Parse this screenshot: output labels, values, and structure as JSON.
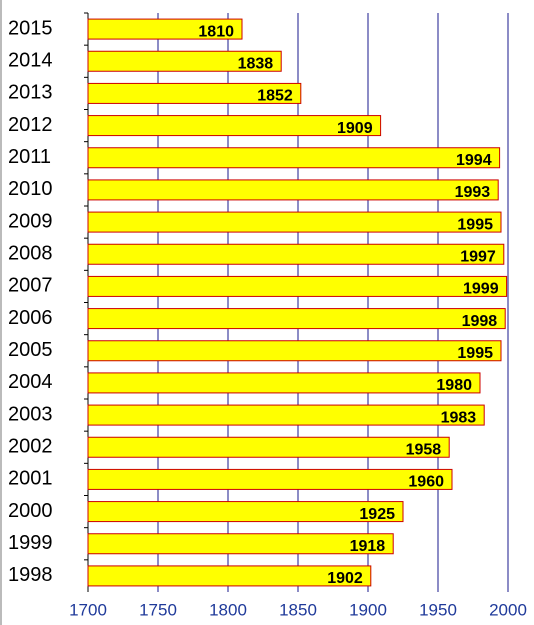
{
  "chart_data": {
    "type": "bar",
    "orientation": "horizontal",
    "categories": [
      "2015",
      "2014",
      "2013",
      "2012",
      "2011",
      "2010",
      "2009",
      "2008",
      "2007",
      "2006",
      "2005",
      "2004",
      "2003",
      "2002",
      "2001",
      "2000",
      "1999",
      "1998"
    ],
    "values": [
      1810,
      1838,
      1852,
      1909,
      1994,
      1993,
      1995,
      1997,
      1999,
      1998,
      1995,
      1980,
      1983,
      1958,
      1960,
      1925,
      1918,
      1902
    ],
    "color": "#ffff00",
    "edge_color": "#cc0000",
    "grid_color": "#1a1a8c",
    "xlim": [
      1700,
      2000
    ],
    "xticks": [
      1700,
      1750,
      1800,
      1850,
      1900,
      1950,
      2000
    ],
    "grid": true
  }
}
